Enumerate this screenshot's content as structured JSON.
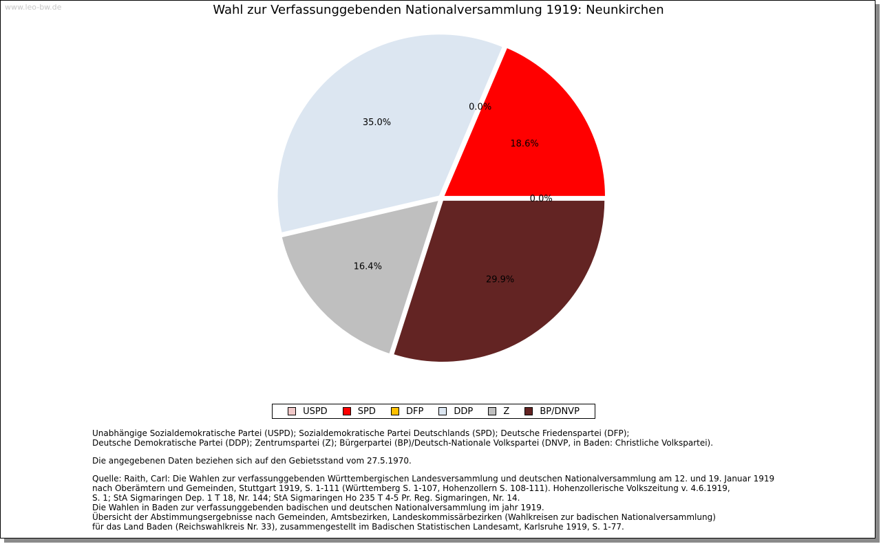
{
  "watermark": "www.leo-bw.de",
  "chart_data": {
    "type": "pie",
    "title": "Wahl zur Verfassunggebenden Nationalversammlung 1919: Neunkirchen",
    "legend_position": "bottom",
    "slices": [
      {
        "name": "USPD",
        "value": 0.0,
        "label": "0.0%",
        "color": "#F0C8C8"
      },
      {
        "name": "SPD",
        "value": 18.6,
        "label": "18.6%",
        "color": "#FF0000"
      },
      {
        "name": "DFP",
        "value": 0.0,
        "label": "0.0%",
        "color": "#FFC000"
      },
      {
        "name": "DDP",
        "value": 35.0,
        "label": "35.0%",
        "color": "#DCE6F1"
      },
      {
        "name": "Z",
        "value": 16.4,
        "label": "16.4%",
        "color": "#BFBFBF"
      },
      {
        "name": "BP/DNVP",
        "value": 29.9,
        "label": "29.9%",
        "color": "#632423"
      }
    ]
  },
  "notes": {
    "abbreviations": [
      "Unabhängige Sozialdemokratische Partei (USPD); Sozialdemokratische Partei Deutschlands (SPD); Deutsche Friedenspartei (DFP);",
      "Deutsche Demokratische Partei (DDP); Zentrumspartei (Z); Bürgerpartei (BP)/Deutsch-Nationale Volkspartei (DNVP, in Baden: Christliche Volkspartei)."
    ],
    "territory": "Die angegebenen Daten beziehen sich auf den Gebietsstand vom 27.5.1970.",
    "sources": [
      "Quelle: Raith, Carl: Die Wahlen zur verfassunggebenden Württembergischen Landesversammlung und deutschen Nationalversammlung am 12. und 19. Januar 1919",
      "nach Oberämtern und Gemeinden, Stuttgart 1919, S. 1-111 (Württemberg S. 1-107, Hohenzollern S. 108-111). Hohenzollerische Volkszeitung v. 4.6.1919,",
      "S. 1; StA Sigmaringen Dep. 1 T 18, Nr. 144; StA Sigmaringen Ho 235 T 4-5 Pr. Reg. Sigmaringen, Nr. 14.",
      "Die Wahlen in Baden zur verfassunggebenden badischen und deutschen Nationalversammlung im jahr 1919.",
      "Übersicht der Abstimmungsergebnisse nach Gemeinden, Amtsbezirken, Landeskommissärbezirken (Wahlkreisen zur badischen Nationalversammlung)",
      "für das Land Baden (Reichswahlkreis Nr. 33), zusammengestellt im Badischen Statistischen Landesamt, Karlsruhe 1919, S. 1-77."
    ]
  }
}
